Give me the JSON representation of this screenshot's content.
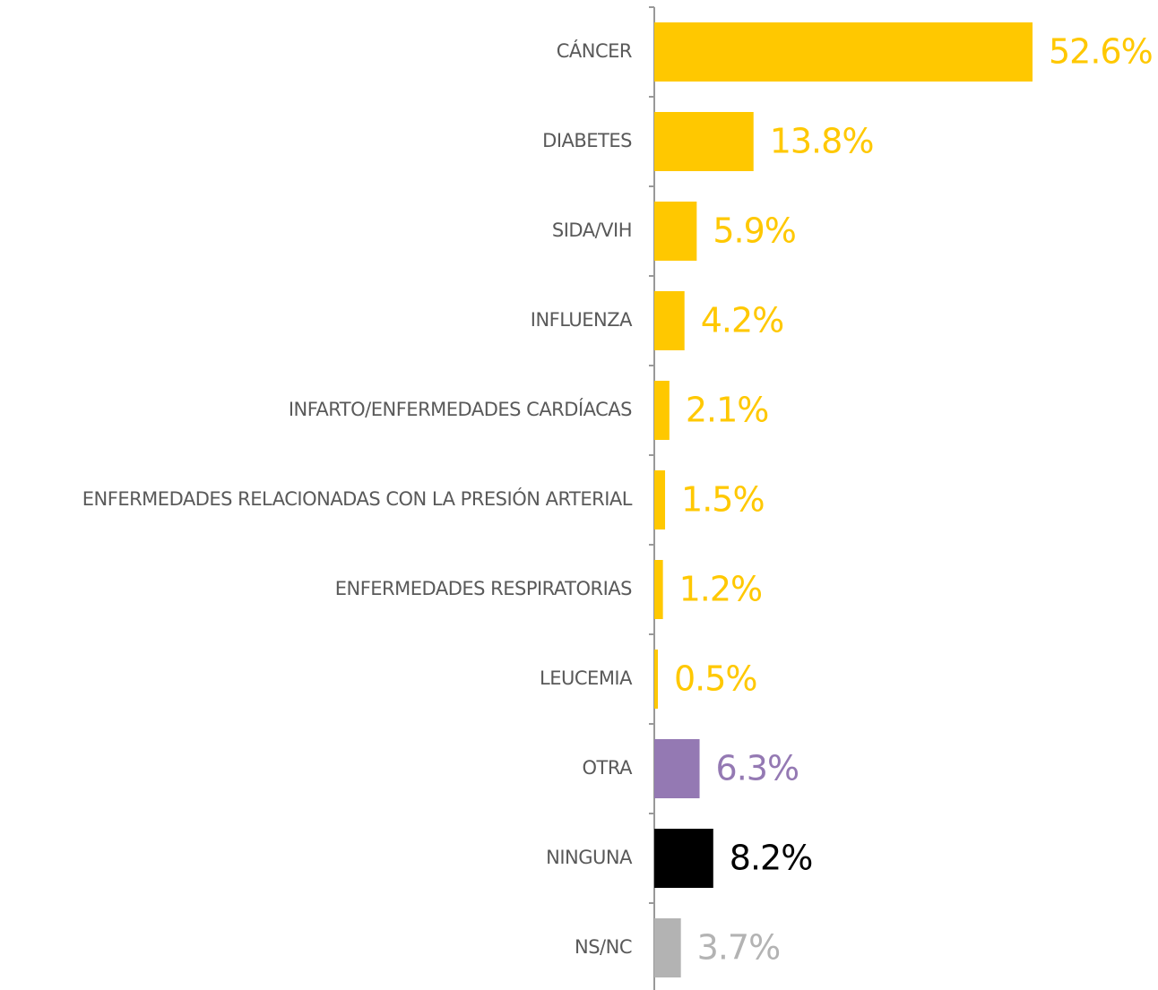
{
  "chart_data": {
    "type": "bar",
    "orientation": "horizontal",
    "categories": [
      "CÁNCER",
      "DIABETES",
      "SIDA/VIH",
      "INFLUENZA",
      "INFARTO/ENFERMEDADES CARDÍACAS",
      "ENFERMEDADES RELACIONADAS CON LA PRESIÓN ARTERIAL",
      "ENFERMEDADES RESPIRATORIAS",
      "LEUCEMIA",
      "OTRA",
      "NINGUNA",
      "NS/NC"
    ],
    "values": [
      52.6,
      13.8,
      5.9,
      4.2,
      2.1,
      1.5,
      1.2,
      0.5,
      6.3,
      8.2,
      3.7
    ],
    "value_labels": [
      "52.6%",
      "13.8%",
      "5.9%",
      "4.2%",
      "2.1%",
      "1.5%",
      "1.2%",
      "0.5%",
      "6.3%",
      "8.2%",
      "3.7%"
    ],
    "colors": [
      "#FFC800",
      "#FFC800",
      "#FFC800",
      "#FFC800",
      "#FFC800",
      "#FFC800",
      "#FFC800",
      "#FFC800",
      "#9479B3",
      "#000000",
      "#B3B3B3"
    ]
  }
}
